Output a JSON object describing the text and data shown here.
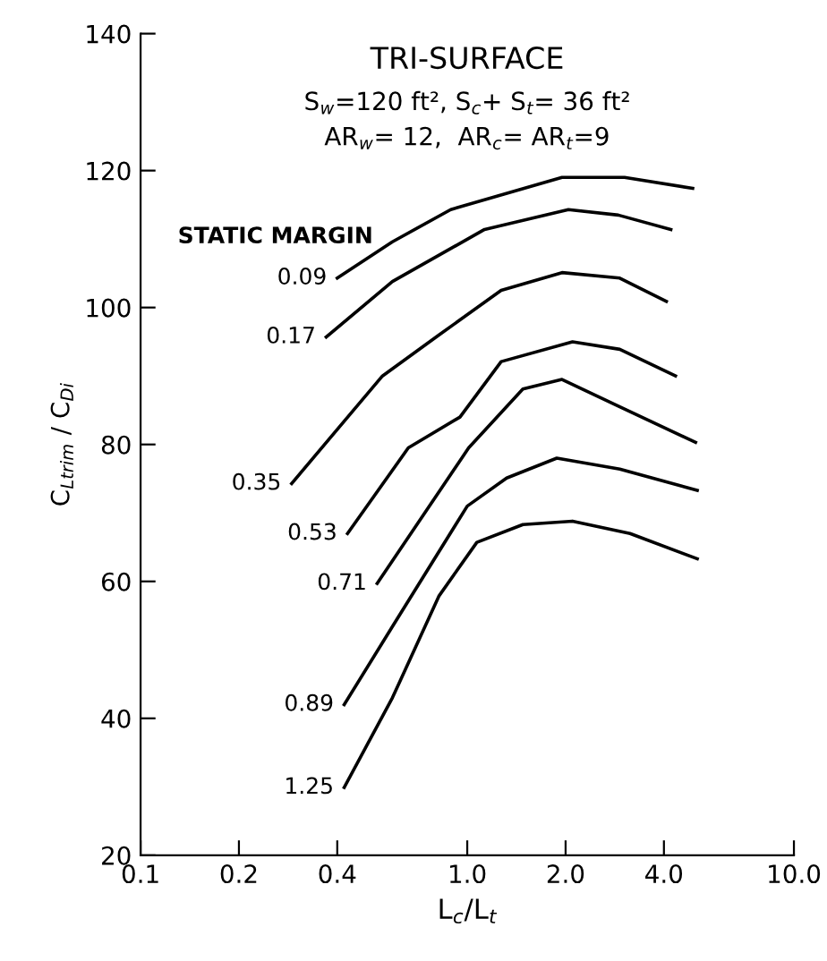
{
  "chart_data": {
    "type": "line",
    "title": "TRI-SURFACE",
    "subtitle": "S$_{w}$=120 ft², S$_{c}$+ S$_{t}$= 36 ft²\nAR$_{w}$= 12,  AR$_{c}$= AR$_{t}$=9",
    "xlabel": "L$_{c}$/L$_{t}$",
    "ylabel": "C$_{Ltrim}$ / C$_{Di}$",
    "log": "x",
    "xlim": [
      0.1,
      10
    ],
    "xticks": [
      {
        "value": 0.1,
        "label": "0.1"
      },
      {
        "value": 0.2,
        "label": "0.2"
      },
      {
        "value": 0.4,
        "label": "0.4"
      },
      {
        "value": 1.0,
        "label": "1.0"
      },
      {
        "value": 2.0,
        "label": "2.0"
      },
      {
        "value": 4.0,
        "label": "4.0"
      },
      {
        "value": 10.0,
        "label": "10.0"
      }
    ],
    "ylim": [
      20,
      140
    ],
    "yticks": [
      20,
      40,
      60,
      80,
      100,
      120,
      140
    ],
    "grid": false,
    "legend": false,
    "annotations": [
      "STATIC MARGIN"
    ],
    "series": [
      {
        "name": "0.09",
        "color": "#000000",
        "x": [
          0.4,
          0.59,
          0.89,
          1.95,
          3.03,
          4.9
        ],
        "values": [
          104.3,
          109.6,
          114.3,
          119,
          119,
          117.4
        ]
      },
      {
        "name": "0.17",
        "color": "#000000",
        "x": [
          0.37,
          0.59,
          1.13,
          2.04,
          2.9,
          4.2
        ],
        "values": [
          95.7,
          103.8,
          111.4,
          114.3,
          113.5,
          111.4
        ]
      },
      {
        "name": "0.35",
        "color": "#000000",
        "x": [
          0.29,
          0.55,
          0.82,
          1.27,
          1.95,
          2.93,
          4.07
        ],
        "values": [
          74.3,
          90,
          96,
          102.5,
          105.1,
          104.3,
          100.9
        ]
      },
      {
        "name": "0.53",
        "color": "#000000",
        "x": [
          0.43,
          0.66,
          0.95,
          1.27,
          2.1,
          2.93,
          4.34
        ],
        "values": [
          67,
          79.5,
          84,
          92.1,
          95,
          93.9,
          90
        ]
      },
      {
        "name": "0.71",
        "color": "#000000",
        "x": [
          0.53,
          1.01,
          1.48,
          1.95,
          2.93,
          5.0
        ],
        "values": [
          59.7,
          79.5,
          88.1,
          89.5,
          85.5,
          80.3
        ]
      },
      {
        "name": "0.89",
        "color": "#000000",
        "x": [
          0.42,
          0.59,
          1.0,
          1.32,
          1.88,
          2.93,
          5.06
        ],
        "values": [
          42,
          53.4,
          71,
          75.1,
          78,
          76.4,
          73.3
        ]
      },
      {
        "name": "1.25",
        "color": "#000000",
        "x": [
          0.42,
          0.59,
          0.82,
          1.07,
          1.48,
          2.1,
          3.15,
          5.06
        ],
        "values": [
          29.9,
          43,
          57.9,
          65.7,
          68.3,
          68.8,
          67,
          63.3
        ]
      }
    ]
  }
}
